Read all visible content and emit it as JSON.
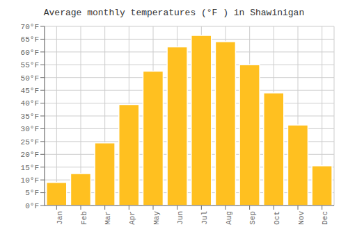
{
  "chart_data": {
    "type": "bar",
    "title": "Average monthly temperatures (°F ) in Shawinigan",
    "categories": [
      "Jan",
      "Feb",
      "Mar",
      "Apr",
      "May",
      "Jun",
      "Jul",
      "Aug",
      "Sep",
      "Oct",
      "Nov",
      "Dec"
    ],
    "values": [
      9,
      12.5,
      24.5,
      39.5,
      52.5,
      62,
      66.5,
      64,
      55,
      44,
      31.5,
      15.5
    ],
    "color": "#FFC020",
    "ylim": [
      0,
      70
    ],
    "yticks": [
      {
        "value": 0,
        "label": "0°F"
      },
      {
        "value": 5,
        "label": "5°F"
      },
      {
        "value": 10,
        "label": "10°F"
      },
      {
        "value": 15,
        "label": "15°F"
      },
      {
        "value": 20,
        "label": "20°F"
      },
      {
        "value": 25,
        "label": "25°F"
      },
      {
        "value": 30,
        "label": "30°F"
      },
      {
        "value": 35,
        "label": "35°F"
      },
      {
        "value": 40,
        "label": "40°F"
      },
      {
        "value": 45,
        "label": "45°F"
      },
      {
        "value": 50,
        "label": "50°F"
      },
      {
        "value": 55,
        "label": "55°F"
      },
      {
        "value": 60,
        "label": "60°F"
      },
      {
        "value": 65,
        "label": "65°F"
      },
      {
        "value": 70,
        "label": "70°F"
      }
    ],
    "grid": true
  }
}
